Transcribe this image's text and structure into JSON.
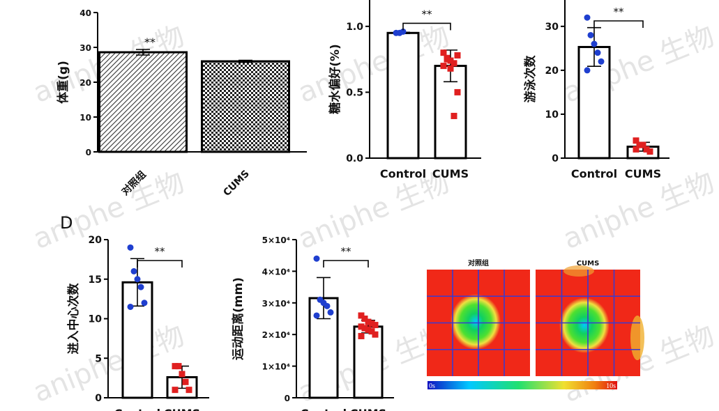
{
  "watermark": "aniphe 生物",
  "panel_letter": "D",
  "colors": {
    "control": "#1f3fcf",
    "cums": "#e02020",
    "axis": "#000000",
    "heat_bg": "#f02818",
    "grid": "#3a3ad0"
  },
  "chart_data": [
    {
      "type": "bar",
      "id": "body-weight",
      "ylabel": "体重(g)",
      "categories": [
        "对照组",
        "CUMS"
      ],
      "values": [
        28.6,
        26.0
      ],
      "errors": [
        0.8,
        0.3
      ],
      "ylim": [
        0,
        40
      ],
      "yticks": [
        0,
        10,
        20,
        30,
        40
      ],
      "sig": "**"
    },
    {
      "type": "bar",
      "id": "sucrose-preference",
      "ylabel": "糖水偏好(%)",
      "categories": [
        "Control",
        "CUMS"
      ],
      "values": [
        0.95,
        0.7
      ],
      "errors": [
        0.005,
        0.12
      ],
      "ylim": [
        0,
        1.2
      ],
      "yticks": [
        0.0,
        0.5,
        1.0
      ],
      "ytick_labels": [
        "0.0",
        "0.5",
        "1.0"
      ],
      "sig": "**",
      "points": [
        [
          0.95,
          0.95,
          0.96
        ],
        [
          0.8,
          0.76,
          0.74,
          0.72,
          0.78,
          0.7,
          0.75,
          0.68,
          0.32,
          0.5
        ]
      ]
    },
    {
      "type": "bar",
      "id": "swim-count",
      "ylabel": "游泳次数",
      "categories": [
        "Control",
        "CUMS"
      ],
      "values": [
        25.3,
        2.6
      ],
      "errors": [
        4.4,
        1.0
      ],
      "ylim": [
        0,
        36
      ],
      "yticks": [
        0,
        10,
        20,
        30
      ],
      "sig": "**",
      "points": [
        [
          32,
          28,
          26,
          24,
          22,
          20
        ],
        [
          4,
          3,
          3,
          2,
          1.5,
          2
        ]
      ]
    },
    {
      "type": "bar",
      "id": "center-entries",
      "ylabel": "进入中心次数",
      "categories": [
        "Control",
        "CUMS"
      ],
      "values": [
        14.6,
        2.6
      ],
      "errors": [
        3.0,
        1.4
      ],
      "ylim": [
        0,
        20
      ],
      "yticks": [
        0,
        5,
        10,
        15,
        20
      ],
      "sig": "**",
      "points": [
        [
          19,
          16,
          15,
          14,
          12,
          11.5
        ],
        [
          4,
          4,
          3,
          2,
          1,
          1
        ]
      ]
    },
    {
      "type": "bar",
      "id": "distance",
      "ylabel": "运动距离(mm)",
      "categories": [
        "Control",
        "CUMS"
      ],
      "values": [
        31500,
        22500
      ],
      "errors": [
        6500,
        2000
      ],
      "ylim": [
        0,
        50000
      ],
      "yticks": [
        0,
        10000,
        20000,
        30000,
        40000,
        50000
      ],
      "ytick_labels": [
        "0",
        "1×10⁴",
        "2×10⁴",
        "3×10⁴",
        "4×10⁴",
        "5×10⁴"
      ],
      "sig": "**",
      "points": [
        [
          44000,
          31000,
          30000,
          29000,
          27000,
          26000
        ],
        [
          26000,
          25000,
          24000,
          23500,
          23000,
          22500,
          22000,
          21500,
          21000,
          20000,
          19500
        ]
      ]
    },
    {
      "type": "heatmap",
      "id": "open-field-heatmap",
      "panels": [
        "对照组",
        "CUMS"
      ],
      "colorbar_min": "0s",
      "colorbar_max": "10s"
    }
  ]
}
